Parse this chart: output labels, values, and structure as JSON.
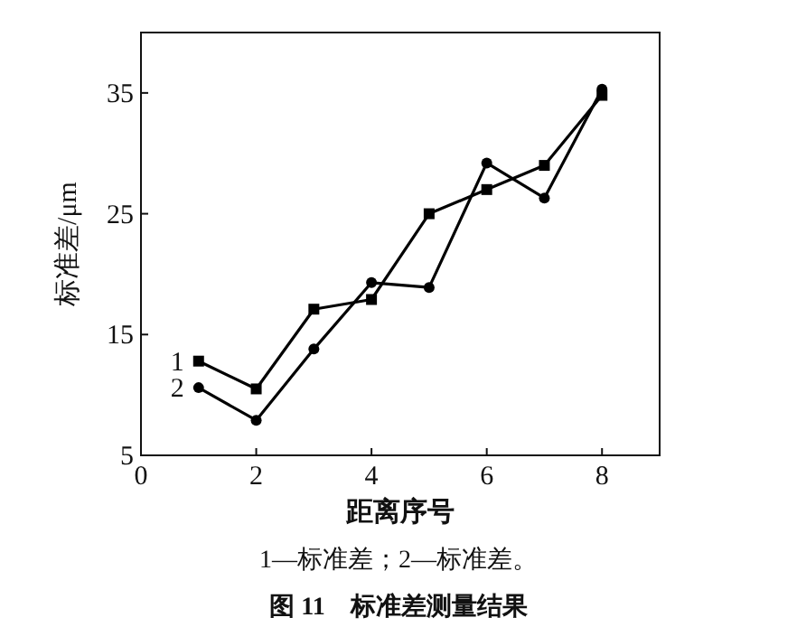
{
  "chart_data": {
    "type": "line",
    "title": "图 11　标准差测量结果",
    "xlabel": "距离序号",
    "ylabel": "标准差/μm",
    "annotations": [
      "1—标准差；2—标准差。"
    ],
    "x": [
      1,
      2,
      3,
      4,
      5,
      6,
      7,
      8
    ],
    "series": [
      {
        "name": "1",
        "color": "#000000",
        "marker": "square",
        "values": [
          12.8,
          10.5,
          17.1,
          17.9,
          25.0,
          27.0,
          29.0,
          34.8
        ]
      },
      {
        "name": "2",
        "color": "#000000",
        "marker": "circle",
        "values": [
          10.6,
          7.9,
          13.8,
          19.3,
          18.9,
          29.2,
          26.3,
          35.3
        ]
      }
    ],
    "xlim": [
      0,
      9
    ],
    "ylim": [
      5,
      40
    ],
    "xticks": [
      0,
      2,
      4,
      6,
      8
    ],
    "yticks": [
      5,
      15,
      25,
      35
    ],
    "grid": false,
    "line_style": "solid"
  }
}
